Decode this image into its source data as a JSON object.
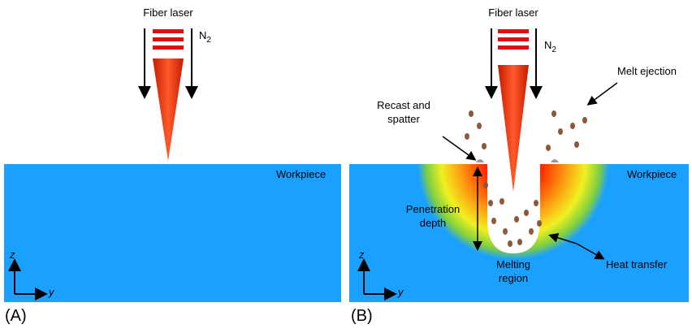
{
  "panels": [
    {
      "label": "(A)",
      "laser": "Fiber laser",
      "gas": {
        "symbol": "N",
        "subscript": "2"
      },
      "workpiece": "Workpiece",
      "axes": {
        "z": "z",
        "y": "y"
      }
    },
    {
      "label": "(B)",
      "laser": "Fiber laser",
      "gas": {
        "symbol": "N",
        "subscript": "2"
      },
      "workpiece": "Workpiece",
      "axes": {
        "z": "z",
        "y": "y"
      },
      "annotations": {
        "melt_ejection": "Melt ejection",
        "recast": [
          "Recast and",
          "spatter"
        ],
        "penetration": [
          "Penetration",
          "depth"
        ],
        "melting": [
          "Melting",
          "region"
        ],
        "heat_transfer": "Heat transfer"
      }
    }
  ]
}
